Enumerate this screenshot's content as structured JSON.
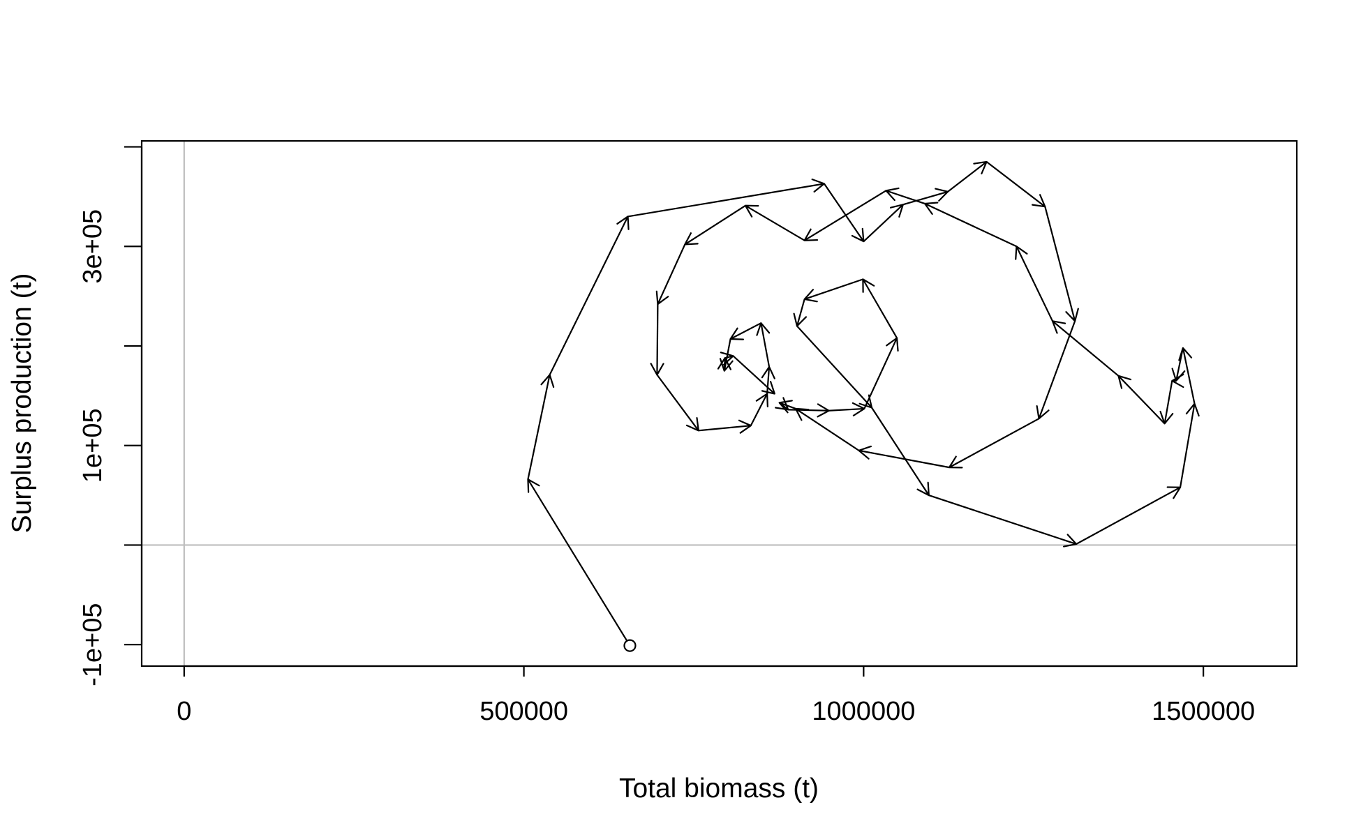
{
  "chart_data": {
    "type": "line",
    "title": "",
    "xlabel": "Total biomass (t)",
    "ylabel": "Surplus production (t)",
    "xlim": [
      -62500,
      1637500
    ],
    "ylim": [
      -121600,
      406000
    ],
    "xticks": [
      {
        "value": 0,
        "label": "0"
      },
      {
        "value": 500000,
        "label": "500000"
      },
      {
        "value": 1000000,
        "label": "1000000"
      },
      {
        "value": 1500000,
        "label": "1500000"
      }
    ],
    "yticks": [
      {
        "value": -100000,
        "label": "-1e+05"
      },
      {
        "value": 0,
        "label": ""
      },
      {
        "value": 100000,
        "label": "1e+05"
      },
      {
        "value": 200000,
        "label": ""
      },
      {
        "value": 300000,
        "label": "3e+05"
      },
      {
        "value": 400000,
        "label": ""
      }
    ],
    "reference_lines": {
      "x": 0,
      "y": 0,
      "color": "#bebebe"
    },
    "grid": false,
    "start_marker": "open-circle",
    "arrows": true,
    "series": [
      {
        "color": "#000000",
        "points": [
          [
            656000,
            -101000
          ],
          [
            506000,
            66000
          ],
          [
            538000,
            171000
          ],
          [
            653000,
            330000
          ],
          [
            942000,
            363000
          ],
          [
            1000000,
            305000
          ],
          [
            1058000,
            342000
          ],
          [
            1124000,
            355000
          ],
          [
            1181000,
            385000
          ],
          [
            1267000,
            340000
          ],
          [
            1311000,
            225000
          ],
          [
            1258000,
            127000
          ],
          [
            1126000,
            78000
          ],
          [
            993000,
            95000
          ],
          [
            900000,
            137000
          ],
          [
            876000,
            143000
          ],
          [
            889000,
            136000
          ],
          [
            949000,
            135000
          ],
          [
            1001000,
            137000
          ],
          [
            1049000,
            208000
          ],
          [
            999000,
            267000
          ],
          [
            913000,
            247000
          ],
          [
            902000,
            220000
          ],
          [
            1012000,
            138000
          ],
          [
            1096000,
            50000
          ],
          [
            1313000,
            1000
          ],
          [
            1466000,
            58000
          ],
          [
            1487000,
            142000
          ],
          [
            1470000,
            198000
          ],
          [
            1460000,
            165000
          ],
          [
            1454000,
            165000
          ],
          [
            1443000,
            122000
          ],
          [
            1375000,
            170000
          ],
          [
            1278000,
            225000
          ],
          [
            1225000,
            300000
          ],
          [
            1090000,
            343000
          ],
          [
            1033000,
            356000
          ],
          [
            913000,
            306000
          ],
          [
            826000,
            341000
          ],
          [
            737000,
            302000
          ],
          [
            697000,
            242000
          ],
          [
            696000,
            171000
          ],
          [
            757000,
            115000
          ],
          [
            834000,
            120000
          ],
          [
            858000,
            152000
          ],
          [
            861000,
            179000
          ],
          [
            849000,
            223000
          ],
          [
            804000,
            207000
          ],
          [
            795000,
            175000
          ],
          [
            796000,
            188000
          ],
          [
            808000,
            190000
          ],
          [
            869000,
            152000
          ]
        ]
      }
    ]
  }
}
